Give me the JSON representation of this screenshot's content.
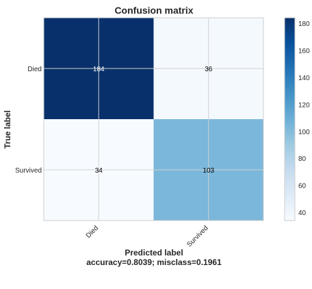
{
  "chart_data": {
    "type": "heatmap",
    "title": "Confusion matrix",
    "ylabel": "True label",
    "xlabel": "Predicted label",
    "xlabel_sub": "accuracy=0.8039; misclass=0.1961",
    "row_labels": [
      "Died",
      "Survived"
    ],
    "col_labels": [
      "Died",
      "Survived"
    ],
    "values": [
      [
        184,
        36
      ],
      [
        34,
        103
      ]
    ],
    "colormap": "Blues",
    "colorbar": {
      "range": [
        34,
        184
      ],
      "ticks": [
        40,
        60,
        80,
        100,
        120,
        140,
        160,
        180
      ]
    },
    "grid": true,
    "text_colors": {
      "dark_cell": "#ffffff",
      "light_cell": "#000000"
    }
  }
}
